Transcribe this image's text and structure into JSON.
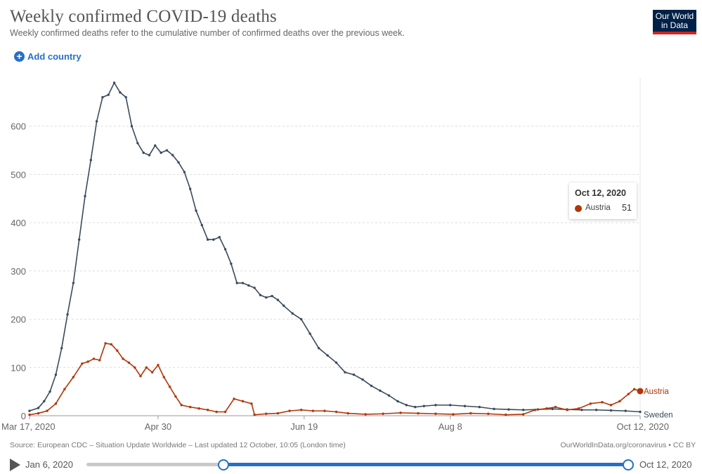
{
  "header": {
    "title": "Weekly confirmed COVID-19 deaths",
    "subtitle": "Weekly confirmed deaths refer to the cumulative number of confirmed deaths over the previous week.",
    "logo": "Our World in Data",
    "add_country": "Add country"
  },
  "tooltip": {
    "date": "Oct 12, 2020",
    "country": "Austria",
    "value": "51"
  },
  "footer": {
    "source": "Source: European CDC – Situation Update Worldwide – Last updated 12 October, 10:05 (London time)",
    "url": "OurWorldInData.org/coronavirus • CC BY"
  },
  "timeline": {
    "start": "Jan 6, 2020",
    "end": "Oct 12, 2020",
    "start_fraction": 0.253,
    "end_fraction": 1.0
  },
  "colors": {
    "sweden": "#3a4a5c",
    "austria": "#b13507",
    "grid": "#dddddd",
    "accent": "#2470c6"
  },
  "chart_data": {
    "type": "line",
    "title": "Weekly confirmed COVID-19 deaths",
    "x_start": "2020-03-17",
    "x_end": "2020-10-12",
    "x_ticks": [
      "Mar 17, 2020",
      "Apr 30",
      "Jun 19",
      "Aug 8",
      "Oct 12, 2020"
    ],
    "x_tick_dates": [
      "2020-03-17",
      "2020-04-30",
      "2020-06-19",
      "2020-08-08",
      "2020-10-12"
    ],
    "ylim": [
      0,
      700
    ],
    "y_ticks": [
      0,
      100,
      200,
      300,
      400,
      500,
      600
    ],
    "grid": true,
    "series": [
      {
        "name": "Sweden",
        "color": "#3a4a5c",
        "points": [
          [
            "2020-03-17",
            10
          ],
          [
            "2020-03-20",
            16
          ],
          [
            "2020-03-22",
            30
          ],
          [
            "2020-03-24",
            50
          ],
          [
            "2020-03-26",
            85
          ],
          [
            "2020-03-28",
            140
          ],
          [
            "2020-03-30",
            210
          ],
          [
            "2020-04-01",
            275
          ],
          [
            "2020-04-03",
            365
          ],
          [
            "2020-04-05",
            455
          ],
          [
            "2020-04-07",
            530
          ],
          [
            "2020-04-09",
            610
          ],
          [
            "2020-04-11",
            660
          ],
          [
            "2020-04-13",
            665
          ],
          [
            "2020-04-15",
            690
          ],
          [
            "2020-04-17",
            670
          ],
          [
            "2020-04-19",
            660
          ],
          [
            "2020-04-21",
            600
          ],
          [
            "2020-04-23",
            565
          ],
          [
            "2020-04-25",
            545
          ],
          [
            "2020-04-27",
            540
          ],
          [
            "2020-04-29",
            560
          ],
          [
            "2020-05-01",
            545
          ],
          [
            "2020-05-03",
            550
          ],
          [
            "2020-05-05",
            540
          ],
          [
            "2020-05-07",
            525
          ],
          [
            "2020-05-09",
            505
          ],
          [
            "2020-05-11",
            470
          ],
          [
            "2020-05-13",
            425
          ],
          [
            "2020-05-15",
            395
          ],
          [
            "2020-05-17",
            365
          ],
          [
            "2020-05-19",
            365
          ],
          [
            "2020-05-21",
            370
          ],
          [
            "2020-05-23",
            345
          ],
          [
            "2020-05-25",
            315
          ],
          [
            "2020-05-27",
            275
          ],
          [
            "2020-05-29",
            275
          ],
          [
            "2020-05-31",
            270
          ],
          [
            "2020-06-02",
            265
          ],
          [
            "2020-06-04",
            250
          ],
          [
            "2020-06-06",
            245
          ],
          [
            "2020-06-08",
            248
          ],
          [
            "2020-06-10",
            240
          ],
          [
            "2020-06-12",
            228
          ],
          [
            "2020-06-15",
            212
          ],
          [
            "2020-06-18",
            200
          ],
          [
            "2020-06-21",
            170
          ],
          [
            "2020-06-24",
            140
          ],
          [
            "2020-06-27",
            125
          ],
          [
            "2020-06-30",
            110
          ],
          [
            "2020-07-03",
            90
          ],
          [
            "2020-07-06",
            85
          ],
          [
            "2020-07-09",
            75
          ],
          [
            "2020-07-12",
            62
          ],
          [
            "2020-07-15",
            52
          ],
          [
            "2020-07-18",
            42
          ],
          [
            "2020-07-21",
            30
          ],
          [
            "2020-07-24",
            22
          ],
          [
            "2020-07-27",
            18
          ],
          [
            "2020-07-30",
            20
          ],
          [
            "2020-08-03",
            22
          ],
          [
            "2020-08-08",
            22
          ],
          [
            "2020-08-13",
            20
          ],
          [
            "2020-08-18",
            18
          ],
          [
            "2020-08-23",
            14
          ],
          [
            "2020-08-28",
            13
          ],
          [
            "2020-09-02",
            12
          ],
          [
            "2020-09-07",
            13
          ],
          [
            "2020-09-12",
            14
          ],
          [
            "2020-09-17",
            13
          ],
          [
            "2020-09-22",
            12
          ],
          [
            "2020-09-27",
            12
          ],
          [
            "2020-10-02",
            11
          ],
          [
            "2020-10-07",
            10
          ],
          [
            "2020-10-12",
            8
          ]
        ]
      },
      {
        "name": "Austria",
        "color": "#b13507",
        "points": [
          [
            "2020-03-17",
            2
          ],
          [
            "2020-03-20",
            5
          ],
          [
            "2020-03-23",
            10
          ],
          [
            "2020-03-26",
            25
          ],
          [
            "2020-03-29",
            55
          ],
          [
            "2020-04-01",
            80
          ],
          [
            "2020-04-04",
            108
          ],
          [
            "2020-04-06",
            112
          ],
          [
            "2020-04-08",
            118
          ],
          [
            "2020-04-10",
            115
          ],
          [
            "2020-04-12",
            150
          ],
          [
            "2020-04-14",
            148
          ],
          [
            "2020-04-16",
            135
          ],
          [
            "2020-04-18",
            118
          ],
          [
            "2020-04-20",
            110
          ],
          [
            "2020-04-22",
            100
          ],
          [
            "2020-04-24",
            82
          ],
          [
            "2020-04-26",
            100
          ],
          [
            "2020-04-28",
            90
          ],
          [
            "2020-04-30",
            105
          ],
          [
            "2020-05-02",
            80
          ],
          [
            "2020-05-04",
            60
          ],
          [
            "2020-05-06",
            40
          ],
          [
            "2020-05-08",
            22
          ],
          [
            "2020-05-11",
            18
          ],
          [
            "2020-05-14",
            15
          ],
          [
            "2020-05-17",
            12
          ],
          [
            "2020-05-20",
            8
          ],
          [
            "2020-05-23",
            8
          ],
          [
            "2020-05-26",
            35
          ],
          [
            "2020-05-29",
            30
          ],
          [
            "2020-06-01",
            25
          ],
          [
            "2020-06-02",
            2
          ],
          [
            "2020-06-06",
            4
          ],
          [
            "2020-06-10",
            5
          ],
          [
            "2020-06-14",
            10
          ],
          [
            "2020-06-18",
            12
          ],
          [
            "2020-06-22",
            10
          ],
          [
            "2020-06-26",
            10
          ],
          [
            "2020-06-30",
            8
          ],
          [
            "2020-07-04",
            5
          ],
          [
            "2020-07-10",
            3
          ],
          [
            "2020-07-16",
            4
          ],
          [
            "2020-07-22",
            6
          ],
          [
            "2020-07-28",
            5
          ],
          [
            "2020-08-03",
            4
          ],
          [
            "2020-08-09",
            3
          ],
          [
            "2020-08-15",
            5
          ],
          [
            "2020-08-21",
            4
          ],
          [
            "2020-08-27",
            2
          ],
          [
            "2020-09-02",
            3
          ],
          [
            "2020-09-06",
            12
          ],
          [
            "2020-09-10",
            15
          ],
          [
            "2020-09-13",
            18
          ],
          [
            "2020-09-17",
            12
          ],
          [
            "2020-09-21",
            15
          ],
          [
            "2020-09-25",
            25
          ],
          [
            "2020-09-29",
            28
          ],
          [
            "2020-10-02",
            22
          ],
          [
            "2020-10-05",
            30
          ],
          [
            "2020-10-08",
            45
          ],
          [
            "2020-10-10",
            55
          ],
          [
            "2020-10-12",
            51
          ]
        ]
      }
    ]
  }
}
